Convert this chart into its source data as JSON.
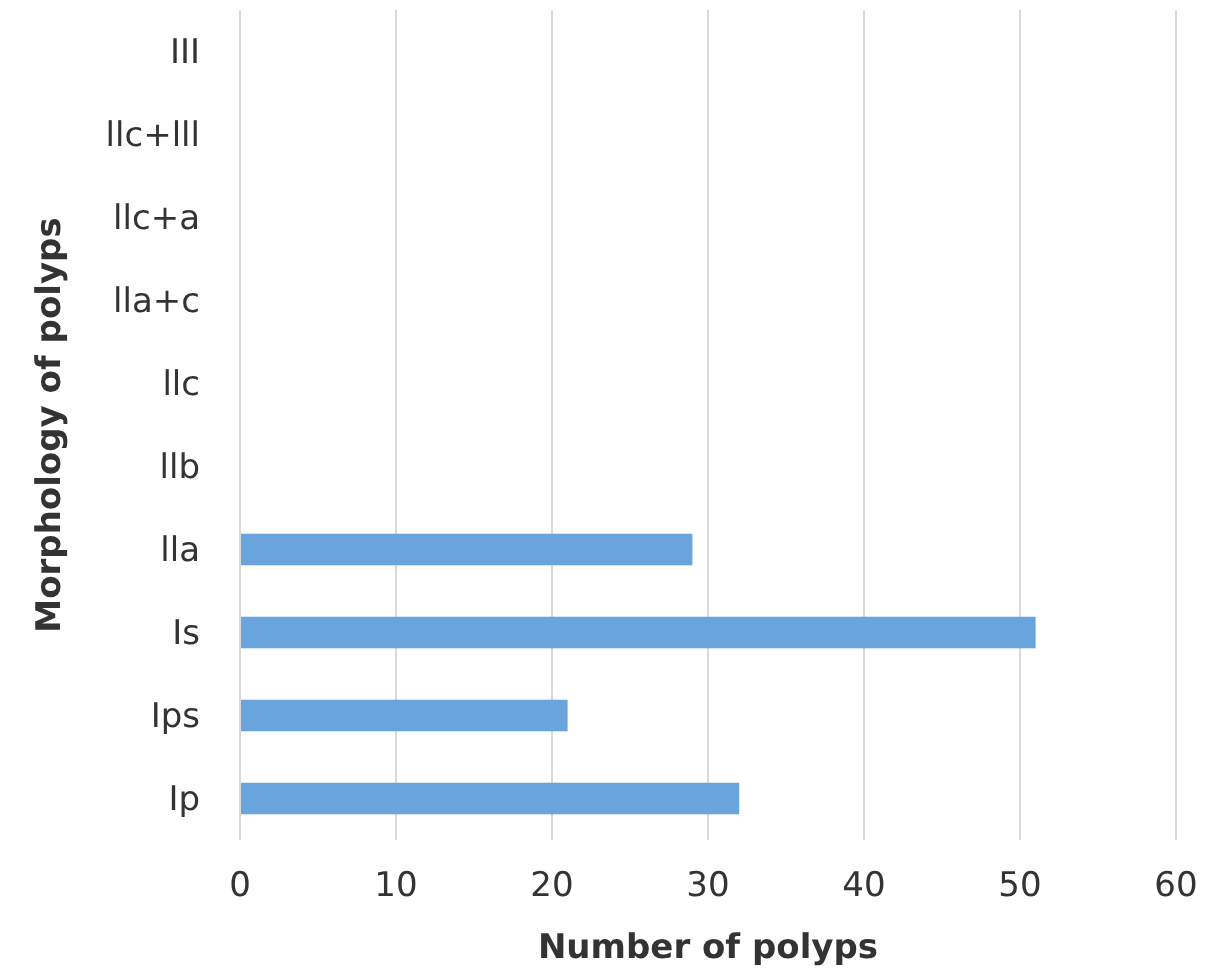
{
  "chart_data": {
    "type": "bar",
    "orientation": "horizontal",
    "xlabel": "Number of polyps",
    "ylabel": "Morphology of polyps",
    "categories": [
      "III",
      "llc+lll",
      "llc+a",
      "lla+c",
      "llc",
      "llb",
      "lla",
      "Is",
      "Ips",
      "Ip"
    ],
    "values": [
      0,
      0,
      0,
      0,
      0,
      0,
      29,
      51,
      21,
      32
    ],
    "color": "#6aa4dc",
    "xlim": [
      0,
      60
    ],
    "xticks": [
      0,
      10,
      20,
      30,
      40,
      50,
      60
    ],
    "grid": "x"
  }
}
